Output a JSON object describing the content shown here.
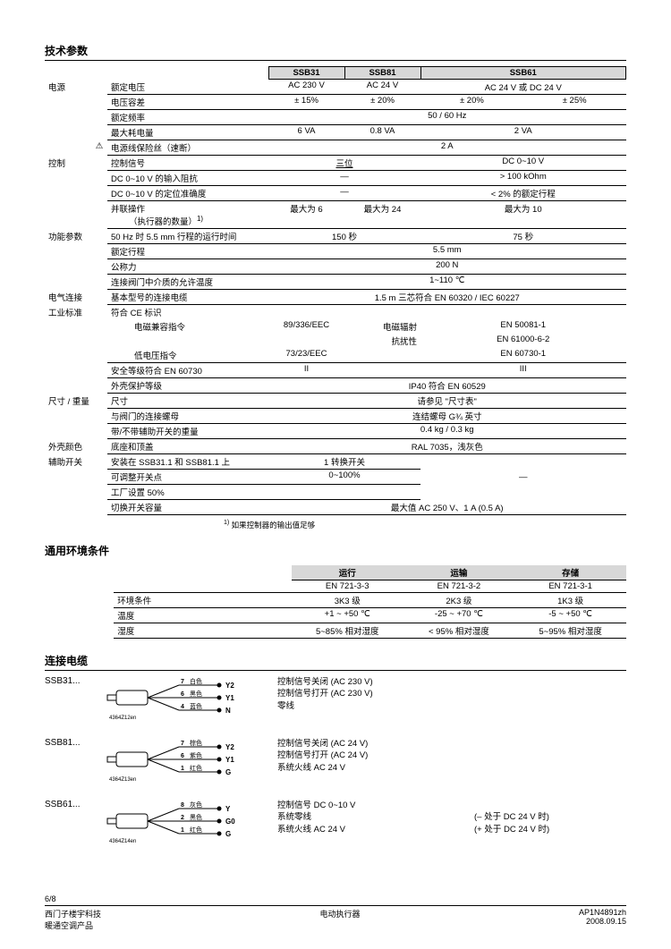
{
  "sections": {
    "tech_params": "技术参数",
    "env": "通用环境条件",
    "cables": "连接电缆"
  },
  "models": {
    "a": "SSB31",
    "b": "SSB81",
    "c": "SSB61"
  },
  "rows": {
    "power": "电源",
    "rated_voltage": "额定电压",
    "rv_a": "AC 230 V",
    "rv_b": "AC 24 V",
    "rv_c": "AC 24 V 或 DC 24 V",
    "volt_tol": "电压容差",
    "vt_a": "± 15%",
    "vt_b": "± 20%",
    "vt_c1": "± 20%",
    "vt_c2": "± 25%",
    "rated_freq": "额定频率",
    "rf_v": "50 / 60 Hz",
    "max_power": "最大耗电量",
    "mp_a": "6 VA",
    "mp_b": "0.8 VA",
    "mp_c": "2 VA",
    "fuse": "电源线保险丝（速断）",
    "fuse_v": "2 A",
    "warn": "⚠",
    "control": "控制",
    "ctrl_signal": "控制信号",
    "cs_ab": "三位",
    "cs_c": "DC 0~10 V",
    "input_imp": "DC 0~10 V 的输入阻抗",
    "ii_ab": "—",
    "ii_c": "> 100 kOhm",
    "pos_acc": "DC 0~10 V 的定位准确度",
    "pa_ab": "—",
    "pa_c": "< 2% 的额定行程",
    "parallel": "并联操作",
    "par_sub": "（执行器的数量）",
    "par_a": "最大为 6",
    "par_b": "最大为 24",
    "par_c": "最大为 10",
    "func": "功能参数",
    "runtime": "50 Hz 时 5.5 mm 行程的运行时间",
    "rt_ab": "150 秒",
    "rt_c": "75 秒",
    "stroke": "额定行程",
    "stroke_v": "5.5 mm",
    "force": "公称力",
    "force_v": "200 N",
    "med_temp": "连接阀门中介质的允许温度",
    "mt_v": "1~110 ℃",
    "elec_conn": "电气连接",
    "cable": "基本型号的连接电缆",
    "cable_v": "1.5 m 三芯符合 EN 60320 / IEC 60227",
    "ind_std": "工业标准",
    "ce": "符合 CE 标识",
    "emc": "电磁兼容指令",
    "emc_l": "89/336/EEC",
    "emc_r1a": "电磁辐射",
    "emc_r1b": "EN 50081-1",
    "emc_r2a": "抗扰性",
    "emc_r2b": "EN 61000-6-2",
    "lvd": "低电压指令",
    "lvd_l": "73/23/EEC",
    "lvd_r": "EN 60730-1",
    "safety": "安全等级符合 EN 60730",
    "saf_a": "II",
    "saf_c": "III",
    "encl": "外壳保护等级",
    "encl_v": "IP40 符合 EN 60529",
    "dim_wt": "尺寸 / 重量",
    "dim": "尺寸",
    "dim_v": "请参见 \"尺寸表\"",
    "nut": "与阀门的连接螺母",
    "nut_v": "连结螺母 G¾ 英寸",
    "weight": "带/不带辅助开关的重量",
    "wt_v": "0.4 kg / 0.3 kg",
    "color": "外壳颜色",
    "base_top": "底座和顶盖",
    "bt_v": "RAL 7035，浅灰色",
    "aux_sw": "辅助开关",
    "install": "安装在 SSB31.1 和 SSB81.1 上",
    "inst_v": "1 转换开关",
    "adj": "可调整开关点",
    "adj_v": "0~100%",
    "factory": "工厂设置 50%",
    "sw_cap": "切换开关容量",
    "sc_v": "最大值 AC 250 V、1 A (0.5 A)",
    "aux_c": "—",
    "footnote_mark": "1)",
    "footnote": "如果控制器的输出值足够"
  },
  "env": {
    "op": "运行",
    "trans": "运输",
    "store": "存储",
    "op_std": "EN 721-3-3",
    "trans_std": "EN 721-3-2",
    "store_std": "EN 721-3-1",
    "cond": "环境条件",
    "c_op": "3K3 级",
    "c_trans": "2K3 级",
    "c_store": "1K3 级",
    "temp": "温度",
    "t_op": "+1 ~ +50 ℃",
    "t_trans": "-25 ~ +70 ℃",
    "t_store": "-5 ~ +50 ℃",
    "hum": "湿度",
    "h_op": "5~85% 相对湿度",
    "h_trans": "< 95% 相对湿度",
    "h_store": "5~95% 相对湿度"
  },
  "wires": {
    "m31": "SSB31...",
    "m31_d1": "控制信号关闭 (AC 230 V)",
    "m31_d2": "控制信号打开 (AC 230 V)",
    "m31_d3": "零线",
    "m81": "SSB81...",
    "m81_d1": "控制信号关闭 (AC 24 V)",
    "m81_d2": "控制信号打开 (AC 24 V)",
    "m81_d3": "系统火线 AC 24 V",
    "m61": "SSB61...",
    "m61_d1": "控制信号 DC 0~10 V",
    "m61_d2": "系统零线",
    "m61_d3": "系统火线 AC 24 V",
    "m61_n2": "(– 处于 DC 24 V 时)",
    "m61_n3": "(+ 处于 DC 24 V 时)"
  },
  "wire_labels": {
    "w31": [
      {
        "n": "7",
        "c": "白色",
        "t": "Y2"
      },
      {
        "n": "6",
        "c": "黑色",
        "t": "Y1"
      },
      {
        "n": "4",
        "c": "蓝色",
        "t": "N"
      }
    ],
    "w81": [
      {
        "n": "7",
        "c": "棕色",
        "t": "Y2"
      },
      {
        "n": "6",
        "c": "紫色",
        "t": "Y1"
      },
      {
        "n": "1",
        "c": "红色",
        "t": "G"
      }
    ],
    "w61": [
      {
        "n": "8",
        "c": "灰色",
        "t": "Y"
      },
      {
        "n": "2",
        "c": "黑色",
        "t": "G0"
      },
      {
        "n": "1",
        "c": "红色",
        "t": "G"
      }
    ],
    "ref31": "4364Z12en",
    "ref81": "4364Z13en",
    "ref61": "4364Z14en"
  },
  "footer": {
    "page": "6/8",
    "l1": "西门子楼宇科技",
    "l2": "暖通空调产品",
    "m": "电动执行器",
    "r1": "AP1N4891zh",
    "r2": "2008.09.15"
  },
  "colors": {
    "hdr_bg": "#d8d8d8"
  }
}
